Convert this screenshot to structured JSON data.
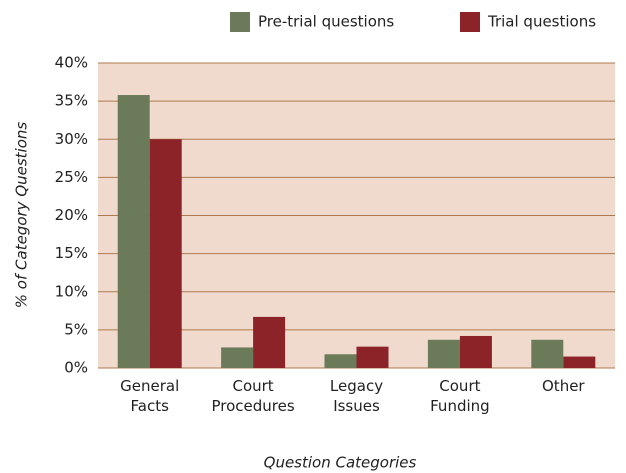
{
  "chart_data": {
    "type": "bar",
    "categories": [
      "General Facts",
      "Court Procedures",
      "Legacy Issues",
      "Court Funding",
      "Other"
    ],
    "series": [
      {
        "name": "Pre-trial questions",
        "color": "#6b7b5a",
        "values": [
          35.8,
          2.7,
          1.8,
          3.7,
          3.7
        ]
      },
      {
        "name": "Trial questions",
        "color": "#8b2329",
        "values": [
          30,
          6.7,
          2.8,
          4.2,
          1.5
        ]
      }
    ],
    "ylabel": "% of Category Questions",
    "xlabel": "Question Categories",
    "ylim": [
      0,
      40
    ],
    "yticks": [
      {
        "value": 0,
        "label": "0%"
      },
      {
        "value": 5,
        "label": "5%"
      },
      {
        "value": 10,
        "label": "10%"
      },
      {
        "value": 15,
        "label": "15%"
      },
      {
        "value": 20,
        "label": "20%"
      },
      {
        "value": 25,
        "label": "25%"
      },
      {
        "value": 30,
        "label": "30%"
      },
      {
        "value": 35,
        "label": "35%"
      },
      {
        "value": 40,
        "label": "40%"
      }
    ],
    "grid": true,
    "legend": "top"
  }
}
